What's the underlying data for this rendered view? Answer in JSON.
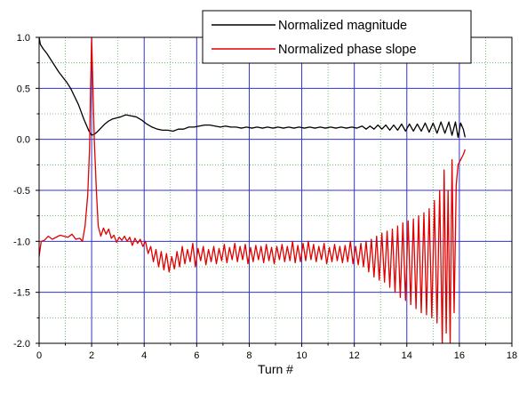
{
  "chart_data": {
    "type": "line",
    "title": "",
    "xlabel": "Turn #",
    "ylabel": "",
    "xlim": [
      0,
      18
    ],
    "ylim": [
      -2.0,
      1.0
    ],
    "x_ticks": [
      0,
      2,
      4,
      6,
      8,
      10,
      12,
      14,
      16,
      18
    ],
    "x_tick_labels": [
      "0",
      "2",
      "4",
      "6",
      "8",
      "10",
      "12",
      "14",
      "16",
      "18"
    ],
    "y_ticks": [
      1.0,
      0.5,
      0.0,
      -0.5,
      -1.0,
      -1.5,
      -2.0
    ],
    "y_tick_labels": [
      "1.0",
      "0.5",
      "0.0",
      "-0.5",
      "-1.0",
      "-1.5",
      "-2.0"
    ],
    "grid": {
      "major": true,
      "major_color": "#3333cc",
      "minor": true,
      "minor_color": "#55aa55",
      "minor_x_step": 1,
      "minor_y_step": 0.25
    },
    "legend_position": "top-right",
    "series": [
      {
        "name": "Normalized magnitude",
        "color": "#000000",
        "points": [
          [
            0.0,
            1.0
          ],
          [
            0.05,
            0.93
          ],
          [
            0.15,
            0.89
          ],
          [
            0.3,
            0.84
          ],
          [
            0.45,
            0.78
          ],
          [
            0.6,
            0.72
          ],
          [
            0.75,
            0.66
          ],
          [
            0.9,
            0.61
          ],
          [
            1.05,
            0.56
          ],
          [
            1.2,
            0.5
          ],
          [
            1.35,
            0.42
          ],
          [
            1.5,
            0.34
          ],
          [
            1.6,
            0.27
          ],
          [
            1.7,
            0.2
          ],
          [
            1.8,
            0.14
          ],
          [
            1.9,
            0.08
          ],
          [
            2.0,
            0.04
          ],
          [
            2.1,
            0.05
          ],
          [
            2.2,
            0.07
          ],
          [
            2.35,
            0.11
          ],
          [
            2.5,
            0.15
          ],
          [
            2.65,
            0.18
          ],
          [
            2.8,
            0.2
          ],
          [
            2.95,
            0.21
          ],
          [
            3.1,
            0.22
          ],
          [
            3.3,
            0.24
          ],
          [
            3.5,
            0.23
          ],
          [
            3.7,
            0.22
          ],
          [
            3.9,
            0.19
          ],
          [
            4.1,
            0.15
          ],
          [
            4.3,
            0.12
          ],
          [
            4.5,
            0.1
          ],
          [
            4.7,
            0.09
          ],
          [
            4.9,
            0.09
          ],
          [
            5.1,
            0.08
          ],
          [
            5.3,
            0.1
          ],
          [
            5.5,
            0.1
          ],
          [
            5.7,
            0.12
          ],
          [
            5.9,
            0.12
          ],
          [
            6.1,
            0.13
          ],
          [
            6.3,
            0.14
          ],
          [
            6.5,
            0.14
          ],
          [
            6.7,
            0.13
          ],
          [
            6.9,
            0.12
          ],
          [
            7.1,
            0.13
          ],
          [
            7.3,
            0.12
          ],
          [
            7.5,
            0.12
          ],
          [
            7.7,
            0.11
          ],
          [
            7.9,
            0.12
          ],
          [
            8.1,
            0.11
          ],
          [
            8.3,
            0.12
          ],
          [
            8.5,
            0.11
          ],
          [
            8.7,
            0.12
          ],
          [
            8.9,
            0.11
          ],
          [
            9.1,
            0.12
          ],
          [
            9.3,
            0.11
          ],
          [
            9.5,
            0.12
          ],
          [
            9.7,
            0.11
          ],
          [
            9.9,
            0.12
          ],
          [
            10.1,
            0.11
          ],
          [
            10.3,
            0.12
          ],
          [
            10.5,
            0.11
          ],
          [
            10.7,
            0.12
          ],
          [
            10.9,
            0.11
          ],
          [
            11.1,
            0.12
          ],
          [
            11.3,
            0.11
          ],
          [
            11.5,
            0.12
          ],
          [
            11.7,
            0.11
          ],
          [
            11.9,
            0.12
          ],
          [
            12.1,
            0.11
          ],
          [
            12.3,
            0.13
          ],
          [
            12.45,
            0.1
          ],
          [
            12.6,
            0.13
          ],
          [
            12.75,
            0.1
          ],
          [
            12.9,
            0.14
          ],
          [
            13.05,
            0.1
          ],
          [
            13.2,
            0.14
          ],
          [
            13.35,
            0.09
          ],
          [
            13.5,
            0.14
          ],
          [
            13.65,
            0.09
          ],
          [
            13.8,
            0.15
          ],
          [
            13.95,
            0.08
          ],
          [
            14.1,
            0.15
          ],
          [
            14.25,
            0.08
          ],
          [
            14.4,
            0.15
          ],
          [
            14.55,
            0.08
          ],
          [
            14.7,
            0.16
          ],
          [
            14.85,
            0.07
          ],
          [
            15.0,
            0.16
          ],
          [
            15.15,
            0.06
          ],
          [
            15.3,
            0.17
          ],
          [
            15.45,
            0.06
          ],
          [
            15.6,
            0.17
          ],
          [
            15.72,
            0.04
          ],
          [
            15.85,
            0.17
          ],
          [
            15.95,
            0.02
          ],
          [
            16.05,
            0.16
          ],
          [
            16.15,
            0.1
          ],
          [
            16.22,
            0.02
          ]
        ]
      },
      {
        "name": "Normalized phase slope",
        "color": "#e00000",
        "points": [
          [
            0.0,
            -1.15
          ],
          [
            0.08,
            -1.0
          ],
          [
            0.2,
            -0.99
          ],
          [
            0.35,
            -0.95
          ],
          [
            0.5,
            -0.98
          ],
          [
            0.65,
            -0.96
          ],
          [
            0.8,
            -0.94
          ],
          [
            0.95,
            -0.95
          ],
          [
            1.1,
            -0.96
          ],
          [
            1.25,
            -0.93
          ],
          [
            1.4,
            -0.98
          ],
          [
            1.55,
            -0.97
          ],
          [
            1.65,
            -1.0
          ],
          [
            1.75,
            -0.85
          ],
          [
            1.85,
            -0.55
          ],
          [
            1.92,
            -0.1
          ],
          [
            1.96,
            0.5
          ],
          [
            2.0,
            1.0
          ],
          [
            2.04,
            0.6
          ],
          [
            2.1,
            0.0
          ],
          [
            2.18,
            -0.5
          ],
          [
            2.25,
            -0.85
          ],
          [
            2.35,
            -0.95
          ],
          [
            2.45,
            -0.87
          ],
          [
            2.55,
            -0.93
          ],
          [
            2.65,
            -0.88
          ],
          [
            2.75,
            -0.97
          ],
          [
            2.85,
            -0.94
          ],
          [
            2.95,
            -1.01
          ],
          [
            3.05,
            -0.96
          ],
          [
            3.15,
            -0.99
          ],
          [
            3.25,
            -0.95
          ],
          [
            3.35,
            -1.0
          ],
          [
            3.45,
            -0.96
          ],
          [
            3.55,
            -1.04
          ],
          [
            3.65,
            -0.97
          ],
          [
            3.75,
            -1.02
          ],
          [
            3.85,
            -0.98
          ],
          [
            3.95,
            -1.05
          ],
          [
            4.05,
            -1.0
          ],
          [
            4.15,
            -1.12
          ],
          [
            4.25,
            -1.05
          ],
          [
            4.35,
            -1.2
          ],
          [
            4.45,
            -1.08
          ],
          [
            4.55,
            -1.25
          ],
          [
            4.65,
            -1.1
          ],
          [
            4.75,
            -1.28
          ],
          [
            4.85,
            -1.12
          ],
          [
            4.95,
            -1.3
          ],
          [
            5.05,
            -1.15
          ],
          [
            5.15,
            -1.27
          ],
          [
            5.25,
            -1.1
          ],
          [
            5.35,
            -1.25
          ],
          [
            5.45,
            -1.05
          ],
          [
            5.55,
            -1.22
          ],
          [
            5.65,
            -1.08
          ],
          [
            5.75,
            -1.2
          ],
          [
            5.85,
            -1.02
          ],
          [
            5.95,
            -1.25
          ],
          [
            6.05,
            -1.07
          ],
          [
            6.15,
            -1.19
          ],
          [
            6.25,
            -1.05
          ],
          [
            6.35,
            -1.23
          ],
          [
            6.45,
            -1.08
          ],
          [
            6.55,
            -1.2
          ],
          [
            6.65,
            -1.05
          ],
          [
            6.75,
            -1.22
          ],
          [
            6.85,
            -1.07
          ],
          [
            6.95,
            -1.19
          ],
          [
            7.05,
            -1.03
          ],
          [
            7.15,
            -1.21
          ],
          [
            7.25,
            -1.06
          ],
          [
            7.35,
            -1.18
          ],
          [
            7.45,
            -1.02
          ],
          [
            7.55,
            -1.2
          ],
          [
            7.65,
            -1.05
          ],
          [
            7.75,
            -1.18
          ],
          [
            7.85,
            -1.03
          ],
          [
            7.95,
            -1.22
          ],
          [
            8.05,
            -1.06
          ],
          [
            8.15,
            -1.2
          ],
          [
            8.25,
            -1.04
          ],
          [
            8.35,
            -1.18
          ],
          [
            8.45,
            -1.05
          ],
          [
            8.55,
            -1.21
          ],
          [
            8.65,
            -1.03
          ],
          [
            8.75,
            -1.19
          ],
          [
            8.85,
            -1.06
          ],
          [
            8.95,
            -1.22
          ],
          [
            9.05,
            -1.05
          ],
          [
            9.15,
            -1.18
          ],
          [
            9.25,
            -1.03
          ],
          [
            9.35,
            -1.2
          ],
          [
            9.45,
            -1.05
          ],
          [
            9.55,
            -1.19
          ],
          [
            9.65,
            -1.0
          ],
          [
            9.75,
            -1.21
          ],
          [
            9.85,
            -1.04
          ],
          [
            9.95,
            -1.2
          ],
          [
            10.05,
            -1.02
          ],
          [
            10.15,
            -1.19
          ],
          [
            10.25,
            -1.0
          ],
          [
            10.35,
            -1.18
          ],
          [
            10.45,
            -1.03
          ],
          [
            10.55,
            -1.2
          ],
          [
            10.65,
            -1.05
          ],
          [
            10.75,
            -1.18
          ],
          [
            10.85,
            -1.02
          ],
          [
            10.95,
            -1.22
          ],
          [
            11.05,
            -1.06
          ],
          [
            11.15,
            -1.2
          ],
          [
            11.25,
            -1.03
          ],
          [
            11.35,
            -1.19
          ],
          [
            11.45,
            -1.05
          ],
          [
            11.55,
            -1.21
          ],
          [
            11.65,
            -1.04
          ],
          [
            11.75,
            -1.2
          ],
          [
            11.85,
            -1.0
          ],
          [
            11.95,
            -1.22
          ],
          [
            12.05,
            -1.05
          ],
          [
            12.15,
            -1.23
          ],
          [
            12.25,
            -1.02
          ],
          [
            12.35,
            -1.25
          ],
          [
            12.45,
            -1.0
          ],
          [
            12.55,
            -1.3
          ],
          [
            12.65,
            -0.98
          ],
          [
            12.75,
            -1.35
          ],
          [
            12.85,
            -0.95
          ],
          [
            12.95,
            -1.38
          ],
          [
            13.05,
            -0.92
          ],
          [
            13.15,
            -1.4
          ],
          [
            13.25,
            -0.9
          ],
          [
            13.35,
            -1.45
          ],
          [
            13.45,
            -0.88
          ],
          [
            13.55,
            -1.5
          ],
          [
            13.65,
            -0.85
          ],
          [
            13.75,
            -1.55
          ],
          [
            13.85,
            -0.82
          ],
          [
            13.95,
            -1.58
          ],
          [
            14.05,
            -0.8
          ],
          [
            14.15,
            -1.62
          ],
          [
            14.25,
            -0.78
          ],
          [
            14.35,
            -1.66
          ],
          [
            14.45,
            -0.75
          ],
          [
            14.55,
            -1.7
          ],
          [
            14.65,
            -0.72
          ],
          [
            14.75,
            -1.72
          ],
          [
            14.85,
            -0.68
          ],
          [
            14.95,
            -1.75
          ],
          [
            15.05,
            -0.6
          ],
          [
            15.15,
            -1.8
          ],
          [
            15.25,
            -0.5
          ],
          [
            15.35,
            -2.0
          ],
          [
            15.42,
            -0.3
          ],
          [
            15.5,
            -1.9
          ],
          [
            15.57,
            -0.5
          ],
          [
            15.65,
            -2.0
          ],
          [
            15.72,
            -0.2
          ],
          [
            15.8,
            -1.7
          ],
          [
            15.88,
            -0.45
          ],
          [
            15.95,
            -0.25
          ],
          [
            16.05,
            -0.2
          ],
          [
            16.15,
            -0.15
          ],
          [
            16.22,
            -0.1
          ]
        ]
      }
    ]
  }
}
